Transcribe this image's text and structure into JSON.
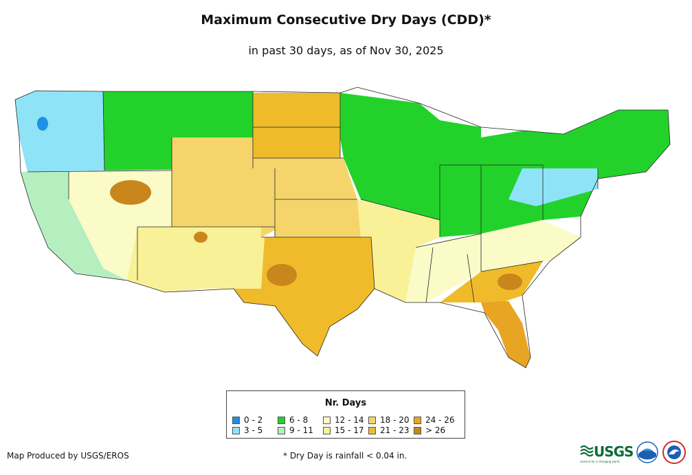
{
  "title": "Maximum Consecutive Dry Days (CDD)*",
  "subtitle": "in past 30 days, as of Nov 30, 2025",
  "legend": {
    "title": "Nr. Days",
    "items": [
      {
        "label": "0 - 2",
        "color": "#1e90e6"
      },
      {
        "label": "3 - 5",
        "color": "#8fe3f7"
      },
      {
        "label": "6 - 8",
        "color": "#22d22a"
      },
      {
        "label": "9 - 11",
        "color": "#b5efc0"
      },
      {
        "label": "12 - 14",
        "color": "#fbfbc8"
      },
      {
        "label": "15 - 17",
        "color": "#f8f197"
      },
      {
        "label": "18 - 20",
        "color": "#f5d56b"
      },
      {
        "label": "21 - 23",
        "color": "#f0bb2a"
      },
      {
        "label": "24 - 26",
        "color": "#e8a423"
      },
      {
        "label": "> 26",
        "color": "#c9861c"
      }
    ]
  },
  "footer": {
    "producer": "Map Produced by USGS/EROS",
    "note": "* Dry Day is rainfall < 0.04 in."
  },
  "logos": [
    {
      "name": "usgs-logo",
      "text": "USGS",
      "tagline": "science for a changing world",
      "color": "#0b6b3a"
    },
    {
      "name": "noaa-logo",
      "color": "#1a5fb4"
    },
    {
      "name": "nws-logo",
      "color": "#d62828"
    }
  ]
}
